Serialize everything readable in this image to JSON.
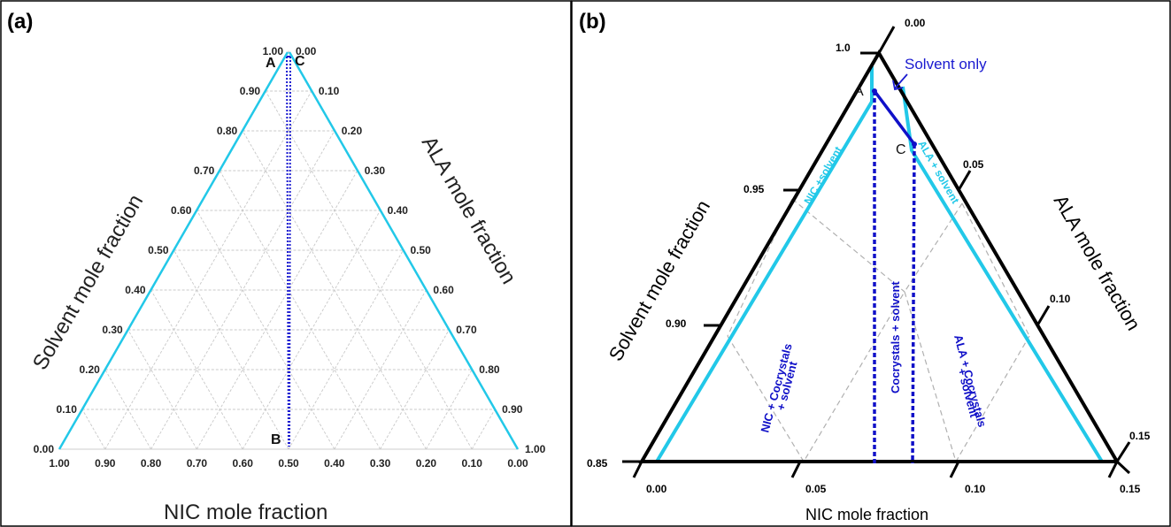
{
  "panel_a": {
    "label": "(a)",
    "left_axis_label": "Solvent mole fraction",
    "right_axis_label": "ALA mole fraction",
    "bottom_axis_label": "NIC mole fraction",
    "left_ticks": [
      "1.00",
      "0.90",
      "0.80",
      "0.70",
      "0.60",
      "0.50",
      "0.40",
      "0.30",
      "0.20",
      "0.10",
      "0.00"
    ],
    "right_ticks": [
      "0.00",
      "0.10",
      "0.20",
      "0.30",
      "0.40",
      "0.50",
      "0.60",
      "0.70",
      "0.80",
      "0.90",
      "1.00"
    ],
    "bottom_ticks": [
      "1.00",
      "0.90",
      "0.80",
      "0.70",
      "0.60",
      "0.50",
      "0.40",
      "0.30",
      "0.20",
      "0.10",
      "0.00"
    ],
    "point_A": "A",
    "point_B": "B",
    "point_C": "C"
  },
  "panel_b": {
    "label": "(b)",
    "left_axis_label": "Solvent mole fraction",
    "right_axis_label": "ALA mole fraction",
    "bottom_axis_label": "NIC mole fraction",
    "left_ticks": [
      "1.0",
      "0.95",
      "0.90",
      "0.85"
    ],
    "right_ticks": [
      "0.00",
      "0.05",
      "0.10",
      "0.15"
    ],
    "bottom_ticks": [
      "0.00",
      "0.05",
      "0.10",
      "0.15"
    ],
    "point_A": "A",
    "point_C": "C",
    "solvent_only": "Solvent only",
    "region_nic_solvent": "NIC +solvent",
    "region_ala_solvent": "ALA + solvent",
    "region_cocrystals_solvent": "Cocrystals + solvent",
    "region_nic_cocrystals_1": "NIC + Cocrystals",
    "region_nic_cocrystals_2": "+ solvent",
    "region_ala_cocrystals_1": "ALA + Cocrystals",
    "region_ala_cocrystals_2": "+ solvent"
  },
  "colors": {
    "cyan": "#22c8e8",
    "blue": "#1010c8",
    "black": "#000000",
    "grid": "#c8c8c8"
  }
}
